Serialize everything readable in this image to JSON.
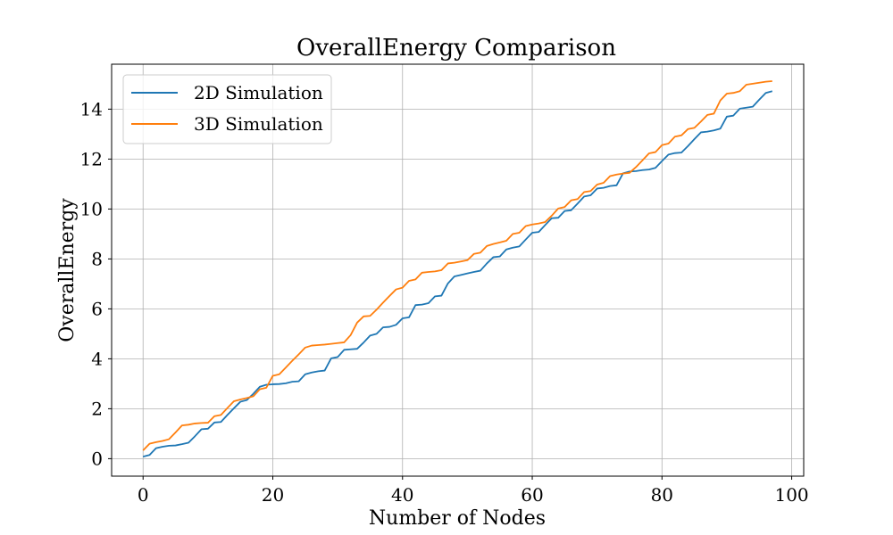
{
  "chart_data": {
    "type": "line",
    "title": "OverallEnergy Comparison",
    "xlabel": "Number of Nodes",
    "ylabel": "OverallEnergy",
    "xlim": [
      -4.85,
      101.85
    ],
    "ylim": [
      -0.7,
      15.8
    ],
    "xticks": [
      0,
      20,
      40,
      60,
      80,
      100
    ],
    "yticks": [
      0,
      2,
      4,
      6,
      8,
      10,
      12,
      14
    ],
    "grid": true,
    "legend": {
      "placement": "top-left"
    },
    "series": [
      {
        "name": "2D Simulation",
        "color": "#1f77b4",
        "points": [
          [
            0,
            0.08
          ],
          [
            1,
            0.15
          ],
          [
            2,
            0.42
          ],
          [
            3,
            0.48
          ],
          [
            4,
            0.52
          ],
          [
            5,
            0.53
          ],
          [
            6,
            0.58
          ],
          [
            7,
            0.64
          ],
          [
            8,
            0.9
          ],
          [
            9,
            1.18
          ],
          [
            10,
            1.2
          ],
          [
            11,
            1.45
          ],
          [
            12,
            1.47
          ],
          [
            13,
            1.75
          ],
          [
            14,
            2.02
          ],
          [
            15,
            2.28
          ],
          [
            16,
            2.35
          ],
          [
            17,
            2.6
          ],
          [
            18,
            2.88
          ],
          [
            19,
            2.96
          ],
          [
            20,
            2.98
          ],
          [
            21,
            2.99
          ],
          [
            22,
            3.02
          ],
          [
            23,
            3.08
          ],
          [
            24,
            3.1
          ],
          [
            25,
            3.38
          ],
          [
            26,
            3.45
          ],
          [
            27,
            3.5
          ],
          [
            28,
            3.53
          ],
          [
            29,
            4.02
          ],
          [
            30,
            4.07
          ],
          [
            31,
            4.36
          ],
          [
            32,
            4.38
          ],
          [
            33,
            4.4
          ],
          [
            34,
            4.65
          ],
          [
            35,
            4.93
          ],
          [
            36,
            5.0
          ],
          [
            37,
            5.26
          ],
          [
            38,
            5.28
          ],
          [
            39,
            5.36
          ],
          [
            40,
            5.62
          ],
          [
            41,
            5.66
          ],
          [
            42,
            6.15
          ],
          [
            43,
            6.17
          ],
          [
            44,
            6.23
          ],
          [
            45,
            6.5
          ],
          [
            46,
            6.53
          ],
          [
            47,
            7.02
          ],
          [
            48,
            7.3
          ],
          [
            49,
            7.36
          ],
          [
            50,
            7.42
          ],
          [
            51,
            7.48
          ],
          [
            52,
            7.53
          ],
          [
            53,
            7.82
          ],
          [
            54,
            8.07
          ],
          [
            55,
            8.1
          ],
          [
            56,
            8.38
          ],
          [
            57,
            8.45
          ],
          [
            58,
            8.5
          ],
          [
            59,
            8.78
          ],
          [
            60,
            9.05
          ],
          [
            61,
            9.08
          ],
          [
            62,
            9.36
          ],
          [
            63,
            9.63
          ],
          [
            64,
            9.65
          ],
          [
            65,
            9.92
          ],
          [
            66,
            9.95
          ],
          [
            67,
            10.22
          ],
          [
            68,
            10.5
          ],
          [
            69,
            10.55
          ],
          [
            70,
            10.82
          ],
          [
            71,
            10.85
          ],
          [
            72,
            10.92
          ],
          [
            73,
            10.95
          ],
          [
            74,
            11.43
          ],
          [
            75,
            11.5
          ],
          [
            76,
            11.52
          ],
          [
            77,
            11.56
          ],
          [
            78,
            11.58
          ],
          [
            79,
            11.65
          ],
          [
            80,
            11.92
          ],
          [
            81,
            12.18
          ],
          [
            82,
            12.24
          ],
          [
            83,
            12.26
          ],
          [
            84,
            12.52
          ],
          [
            85,
            12.8
          ],
          [
            86,
            13.07
          ],
          [
            87,
            13.1
          ],
          [
            88,
            13.15
          ],
          [
            89,
            13.22
          ],
          [
            90,
            13.7
          ],
          [
            91,
            13.74
          ],
          [
            92,
            14.02
          ],
          [
            93,
            14.06
          ],
          [
            94,
            14.1
          ],
          [
            95,
            14.38
          ],
          [
            96,
            14.65
          ],
          [
            97,
            14.72
          ]
        ]
      },
      {
        "name": "3D Simulation",
        "color": "#ff7f0e",
        "points": [
          [
            0,
            0.33
          ],
          [
            1,
            0.6
          ],
          [
            2,
            0.66
          ],
          [
            3,
            0.71
          ],
          [
            4,
            0.78
          ],
          [
            5,
            1.05
          ],
          [
            6,
            1.33
          ],
          [
            7,
            1.36
          ],
          [
            8,
            1.41
          ],
          [
            9,
            1.43
          ],
          [
            10,
            1.44
          ],
          [
            11,
            1.7
          ],
          [
            12,
            1.75
          ],
          [
            13,
            2.03
          ],
          [
            14,
            2.3
          ],
          [
            15,
            2.37
          ],
          [
            16,
            2.43
          ],
          [
            17,
            2.5
          ],
          [
            18,
            2.78
          ],
          [
            19,
            2.84
          ],
          [
            20,
            3.32
          ],
          [
            21,
            3.38
          ],
          [
            22,
            3.65
          ],
          [
            23,
            3.92
          ],
          [
            24,
            4.18
          ],
          [
            25,
            4.45
          ],
          [
            26,
            4.53
          ],
          [
            27,
            4.55
          ],
          [
            28,
            4.57
          ],
          [
            29,
            4.6
          ],
          [
            30,
            4.63
          ],
          [
            31,
            4.66
          ],
          [
            32,
            4.95
          ],
          [
            33,
            5.45
          ],
          [
            34,
            5.7
          ],
          [
            35,
            5.72
          ],
          [
            36,
            5.97
          ],
          [
            37,
            6.25
          ],
          [
            38,
            6.52
          ],
          [
            39,
            6.78
          ],
          [
            40,
            6.85
          ],
          [
            41,
            7.12
          ],
          [
            42,
            7.18
          ],
          [
            43,
            7.45
          ],
          [
            44,
            7.48
          ],
          [
            45,
            7.5
          ],
          [
            46,
            7.55
          ],
          [
            47,
            7.82
          ],
          [
            48,
            7.85
          ],
          [
            49,
            7.9
          ],
          [
            50,
            7.95
          ],
          [
            51,
            8.2
          ],
          [
            52,
            8.25
          ],
          [
            53,
            8.52
          ],
          [
            54,
            8.6
          ],
          [
            55,
            8.66
          ],
          [
            56,
            8.73
          ],
          [
            57,
            9.0
          ],
          [
            58,
            9.05
          ],
          [
            59,
            9.32
          ],
          [
            60,
            9.38
          ],
          [
            61,
            9.42
          ],
          [
            62,
            9.48
          ],
          [
            63,
            9.73
          ],
          [
            64,
            10.02
          ],
          [
            65,
            10.08
          ],
          [
            66,
            10.35
          ],
          [
            67,
            10.4
          ],
          [
            68,
            10.68
          ],
          [
            69,
            10.72
          ],
          [
            70,
            10.98
          ],
          [
            71,
            11.05
          ],
          [
            72,
            11.32
          ],
          [
            73,
            11.38
          ],
          [
            74,
            11.42
          ],
          [
            75,
            11.45
          ],
          [
            76,
            11.68
          ],
          [
            77,
            11.95
          ],
          [
            78,
            12.23
          ],
          [
            79,
            12.28
          ],
          [
            80,
            12.56
          ],
          [
            81,
            12.62
          ],
          [
            82,
            12.9
          ],
          [
            83,
            12.95
          ],
          [
            84,
            13.2
          ],
          [
            85,
            13.25
          ],
          [
            86,
            13.5
          ],
          [
            87,
            13.77
          ],
          [
            88,
            13.82
          ],
          [
            89,
            14.35
          ],
          [
            90,
            14.62
          ],
          [
            91,
            14.65
          ],
          [
            92,
            14.72
          ],
          [
            93,
            14.98
          ],
          [
            94,
            15.02
          ],
          [
            95,
            15.06
          ],
          [
            96,
            15.1
          ],
          [
            97,
            15.12
          ]
        ]
      }
    ]
  }
}
